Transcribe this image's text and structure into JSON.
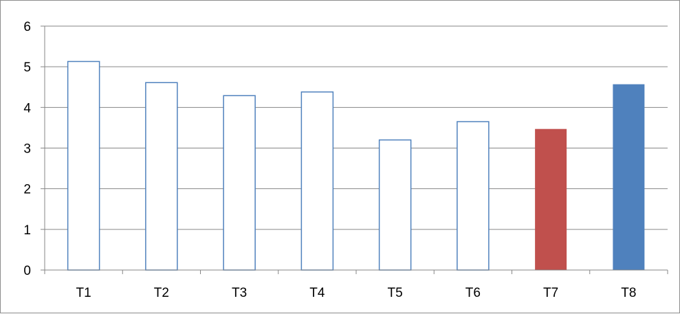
{
  "chart_data": {
    "type": "bar",
    "title": "",
    "xlabel": "",
    "ylabel": "",
    "categories": [
      "T1",
      "T2",
      "T3",
      "T4",
      "T5",
      "T6",
      "T7",
      "T8"
    ],
    "values": [
      5.13,
      4.61,
      4.29,
      4.38,
      3.2,
      3.65,
      3.47,
      4.57
    ],
    "bar_styles": [
      "outline",
      "outline",
      "outline",
      "outline",
      "outline",
      "outline",
      "filled",
      "filled"
    ],
    "bar_colors": [
      "#4f81bd",
      "#4f81bd",
      "#4f81bd",
      "#4f81bd",
      "#4f81bd",
      "#4f81bd",
      "#c0504d",
      "#4f81bd"
    ],
    "ylim": [
      0,
      6
    ],
    "yticks": [
      "0",
      "1",
      "2",
      "3",
      "4",
      "5",
      "6"
    ],
    "grid": true,
    "legend": "none",
    "colors": {
      "gridline": "#868686",
      "axis": "#868686",
      "outline_bar": "#4f81bd",
      "highlight_red": "#c0504d",
      "highlight_blue": "#4f81bd"
    }
  }
}
